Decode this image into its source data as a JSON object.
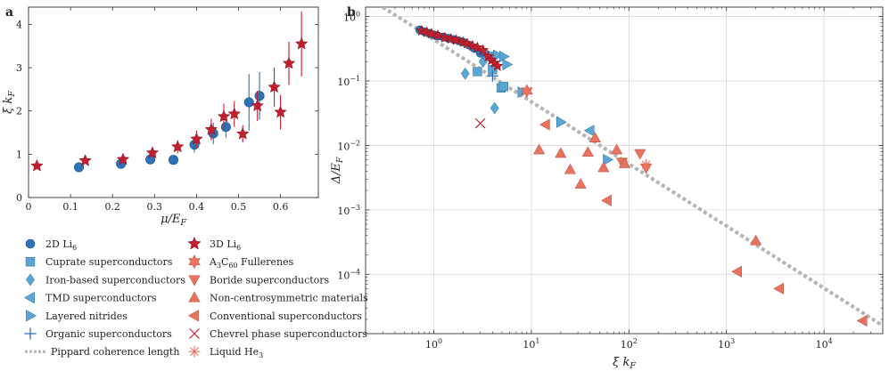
{
  "chart_data": [
    {
      "panel": "a",
      "type": "scatter",
      "xlabel": "μ/E",
      "xlabel_sub": "F",
      "ylabel": "ξ k",
      "ylabel_sub": "F",
      "xlim": [
        0,
        0.69
      ],
      "ylim": [
        0,
        4.4
      ],
      "xticks": [
        0,
        0.1,
        0.2,
        0.3,
        0.4,
        0.5,
        0.6
      ],
      "xtick_labels": [
        "0",
        "0.1",
        "0.2",
        "0.3",
        "0.4",
        "0.5",
        "0.6"
      ],
      "yticks": [
        0,
        1,
        2,
        3,
        4
      ],
      "ytick_labels": [
        "0",
        "1",
        "2",
        "3",
        "4"
      ],
      "series": [
        {
          "name": "2D Li6",
          "label_main": "2D Li",
          "label_sub": "6",
          "marker": "circle",
          "color": "#2e72b8",
          "points": [
            {
              "x": 0.12,
              "y": 0.7,
              "err": 0.0
            },
            {
              "x": 0.22,
              "y": 0.78,
              "err": 0.0
            },
            {
              "x": 0.29,
              "y": 0.88,
              "err": 0.0
            },
            {
              "x": 0.345,
              "y": 0.87,
              "err": 0.0
            },
            {
              "x": 0.395,
              "y": 1.22,
              "err": 0.18
            },
            {
              "x": 0.44,
              "y": 1.48,
              "err": 0.25
            },
            {
              "x": 0.47,
              "y": 1.63,
              "err": 0.25
            },
            {
              "x": 0.525,
              "y": 2.2,
              "err": 0.65
            },
            {
              "x": 0.55,
              "y": 2.35,
              "err": 0.55
            }
          ]
        },
        {
          "name": "3D Li6",
          "label_main": "3D Li",
          "label_sub": "6",
          "marker": "star",
          "color": "#c21f2f",
          "points": [
            {
              "x": 0.02,
              "y": 0.73,
              "err": 0.0
            },
            {
              "x": 0.135,
              "y": 0.85,
              "err": 0.0
            },
            {
              "x": 0.225,
              "y": 0.88,
              "err": 0.0
            },
            {
              "x": 0.295,
              "y": 1.03,
              "err": 0.1
            },
            {
              "x": 0.355,
              "y": 1.17,
              "err": 0.15
            },
            {
              "x": 0.4,
              "y": 1.35,
              "err": 0.2
            },
            {
              "x": 0.435,
              "y": 1.57,
              "err": 0.25
            },
            {
              "x": 0.465,
              "y": 1.87,
              "err": 0.3
            },
            {
              "x": 0.49,
              "y": 1.93,
              "err": 0.3
            },
            {
              "x": 0.51,
              "y": 1.47,
              "err": 0.2
            },
            {
              "x": 0.545,
              "y": 2.12,
              "err": 0.35
            },
            {
              "x": 0.585,
              "y": 2.55,
              "err": 0.45
            },
            {
              "x": 0.6,
              "y": 1.97,
              "err": 0.4
            },
            {
              "x": 0.62,
              "y": 3.1,
              "err": 0.5
            },
            {
              "x": 0.65,
              "y": 3.55,
              "err": 0.75
            }
          ]
        }
      ]
    },
    {
      "panel": "b",
      "type": "scatter",
      "xscale": "log",
      "yscale": "log",
      "xlabel": "ξ k",
      "xlabel_sub": "F",
      "ylabel": "Δ/E",
      "ylabel_sub": "F",
      "xlim": [
        0.2,
        40000
      ],
      "ylim": [
        1.2e-05,
        1.4
      ],
      "grid": true,
      "xticks": [
        1,
        10,
        100,
        1000,
        10000
      ],
      "xtick_base": [
        "10",
        "10",
        "10",
        "10",
        "10"
      ],
      "xtick_exp": [
        "0",
        "1",
        "2",
        "3",
        "4"
      ],
      "yticks": [
        0.0001,
        0.001,
        0.01,
        0.1,
        1
      ],
      "ytick_base": [
        "10",
        "10",
        "10",
        "10",
        "10"
      ],
      "ytick_exp": [
        "−4",
        "−3",
        "−2",
        "−1",
        "0"
      ],
      "pippard_line": {
        "name": "Pippard coherence length",
        "slope": -1,
        "x": [
          0.3,
          40000
        ],
        "y": [
          1.4,
          1.6e-05
        ]
      },
      "series": [
        {
          "name": "2D Li6",
          "marker": "circle",
          "color": "#2e72b8",
          "points": [
            [
              0.72,
              0.62
            ],
            [
              0.8,
              0.58
            ],
            [
              0.9,
              0.55
            ],
            [
              1.0,
              0.52
            ],
            [
              1.1,
              0.5
            ],
            [
              1.25,
              0.48
            ],
            [
              1.4,
              0.46
            ],
            [
              1.6,
              0.44
            ],
            [
              1.8,
              0.42
            ],
            [
              2.0,
              0.4
            ],
            [
              2.3,
              0.36
            ],
            [
              2.6,
              0.32
            ],
            [
              3.0,
              0.27
            ]
          ]
        },
        {
          "name": "3D Li6",
          "marker": "star",
          "color": "#c21f2f",
          "points": [
            [
              0.75,
              0.6
            ],
            [
              0.85,
              0.57
            ],
            [
              0.95,
              0.54
            ],
            [
              1.1,
              0.51
            ],
            [
              1.3,
              0.47
            ],
            [
              1.5,
              0.45
            ],
            [
              1.7,
              0.43
            ],
            [
              2.0,
              0.4
            ],
            [
              2.2,
              0.38
            ],
            [
              2.5,
              0.35
            ],
            [
              2.8,
              0.33
            ],
            [
              3.2,
              0.3
            ],
            [
              3.6,
              0.24
            ],
            [
              3.9,
              0.21
            ],
            [
              4.2,
              0.19
            ],
            [
              4.5,
              0.17
            ]
          ]
        },
        {
          "name": "Cuprate superconductors",
          "marker": "square",
          "color": "#5aa7d6",
          "points": [
            [
              2.8,
              0.14
            ],
            [
              4.0,
              0.15
            ],
            [
              4.9,
              0.078
            ],
            [
              5.2,
              0.082
            ],
            [
              3.8,
              0.24
            ]
          ]
        },
        {
          "name": "Iron-based superconductors",
          "marker": "diamond",
          "color": "#5aa7d6",
          "points": [
            [
              2.1,
              0.13
            ],
            [
              3.2,
              0.2
            ],
            [
              4.2,
              0.038
            ]
          ]
        },
        {
          "name": "TMD superconductors",
          "marker": "tri-left",
          "color": "#5aa7d6",
          "points": [
            [
              40,
              0.017
            ]
          ]
        },
        {
          "name": "Layered nitrides",
          "marker": "tri-right",
          "color": "#5aa7d6",
          "points": [
            [
              3.5,
              0.27
            ],
            [
              4.5,
              0.25
            ],
            [
              5.2,
              0.24
            ],
            [
              5.6,
              0.18
            ],
            [
              8.0,
              0.067
            ],
            [
              20,
              0.023
            ],
            [
              60,
              0.006
            ]
          ]
        },
        {
          "name": "Organic superconductors",
          "marker": "plus",
          "color": "#2e72b8",
          "points": [
            [
              4.0,
              0.12
            ]
          ]
        },
        {
          "name": "Pippard coherence length",
          "marker": "dashed-line",
          "color": "#b5b5b5",
          "points": []
        },
        {
          "name": "A3C60 Fullerenes",
          "marker": "star6",
          "color": "#e8735f",
          "points": [
            [
              9.0,
              0.07
            ]
          ]
        },
        {
          "name": "Boride superconductors",
          "marker": "tri-down",
          "color": "#e8735f",
          "points": [
            [
              85,
              0.0055
            ],
            [
              130,
              0.0075
            ],
            [
              150,
              0.0045
            ]
          ]
        },
        {
          "name": "Non-centrosymmetric materials",
          "marker": "tri-up",
          "color": "#e8735f",
          "points": [
            [
              12,
              0.0085
            ],
            [
              20,
              0.0075
            ],
            [
              25,
              0.0042
            ],
            [
              32,
              0.0025
            ],
            [
              38,
              0.0078
            ],
            [
              45,
              0.013
            ],
            [
              55,
              0.0045
            ],
            [
              75,
              0.0085
            ],
            [
              90,
              0.0052
            ],
            [
              2000,
              0.00033
            ]
          ]
        },
        {
          "name": "Conventional superconductors",
          "marker": "tri-left",
          "color": "#e8735f",
          "points": [
            [
              14,
              0.021
            ],
            [
              60,
              0.0014
            ],
            [
              1300,
              0.00011
            ],
            [
              3500,
              6e-05
            ],
            [
              25000,
              1.9e-05
            ]
          ]
        },
        {
          "name": "Chevrel phase superconductors",
          "marker": "x",
          "color": "#c21f2f",
          "points": [
            [
              3.0,
              0.022
            ]
          ]
        },
        {
          "name": "Liquid He3",
          "marker": "asterisk",
          "color": "#e8735f",
          "points": [
            [
              150,
              0.005
            ]
          ]
        }
      ]
    }
  ],
  "legend": {
    "items": [
      {
        "main": "2D Li",
        "sub": "6",
        "tail": "",
        "marker": "circle",
        "color": "#2e72b8"
      },
      {
        "main": "3D Li",
        "sub": "6",
        "tail": "",
        "marker": "star",
        "color": "#c21f2f"
      },
      {
        "main": "Cuprate superconductors",
        "sub": "",
        "tail": "",
        "marker": "square",
        "color": "#5aa7d6"
      },
      {
        "main": "A",
        "sub": "3",
        "tail": "C",
        "sub2": "60",
        "tail2": " Fullerenes",
        "marker": "star6",
        "color": "#e8735f"
      },
      {
        "main": "Iron-based superconductors",
        "sub": "",
        "tail": "",
        "marker": "diamond",
        "color": "#5aa7d6"
      },
      {
        "main": "Boride superconductors",
        "sub": "",
        "tail": "",
        "marker": "tri-down",
        "color": "#e8735f"
      },
      {
        "main": "TMD superconductors",
        "sub": "",
        "tail": "",
        "marker": "tri-left",
        "color": "#5aa7d6"
      },
      {
        "main": "Non-centrosymmetric materials",
        "sub": "",
        "tail": "",
        "marker": "tri-up",
        "color": "#e8735f"
      },
      {
        "main": "Layered nitrides",
        "sub": "",
        "tail": "",
        "marker": "tri-right",
        "color": "#5aa7d6"
      },
      {
        "main": "Conventional superconductors",
        "sub": "",
        "tail": "",
        "marker": "tri-left",
        "color": "#e8735f"
      },
      {
        "main": "Organic superconductors",
        "sub": "",
        "tail": "",
        "marker": "plus",
        "color": "#2e72b8"
      },
      {
        "main": "Chevrel phase superconductors",
        "sub": "",
        "tail": "",
        "marker": "x",
        "color": "#c21f2f"
      },
      {
        "main": "Pippard coherence length",
        "sub": "",
        "tail": "",
        "marker": "dashed-line",
        "color": "#b5b5b5"
      },
      {
        "main": "Liquid He",
        "sub": "3",
        "tail": "",
        "marker": "asterisk",
        "color": "#e8735f"
      }
    ]
  },
  "panel_labels": [
    "a",
    "b"
  ]
}
